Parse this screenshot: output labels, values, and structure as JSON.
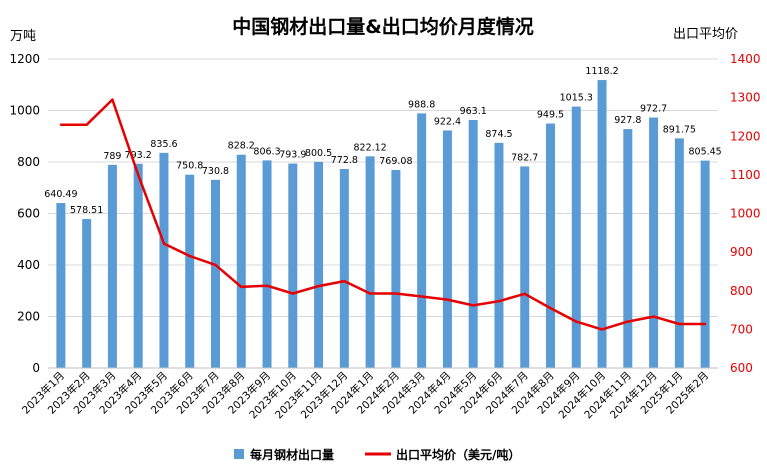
{
  "chart_data": {
    "type": "bar",
    "title": "中国钢材出口量&出口均价月度情况",
    "ylabel_left": "万吨",
    "ylabel_right": "出口平均价",
    "ylim_left": [
      0,
      1200
    ],
    "yticks_left": [
      0,
      200,
      400,
      600,
      800,
      1000,
      1200
    ],
    "ylim_right": [
      600,
      1400
    ],
    "yticks_right": [
      600,
      700,
      800,
      900,
      1000,
      1100,
      1200,
      1300,
      1400
    ],
    "grid": "horizontal",
    "legend_position": "bottom",
    "categories": [
      "2023年1月",
      "2023年2月",
      "2023年3月",
      "2023年4月",
      "2023年5月",
      "2023年6月",
      "2023年7月",
      "2023年8月",
      "2023年9月",
      "2023年10月",
      "2023年11月",
      "2023年12月",
      "2024年1月",
      "2024年2月",
      "2024年3月",
      "2024年4月",
      "2024年5月",
      "2024年6月",
      "2024年7月",
      "2024年8月",
      "2024年9月",
      "2024年10月",
      "2024年11月",
      "2024年12月",
      "2025年1月",
      "2025年2月"
    ],
    "series": [
      {
        "name": "每月钢材出口量",
        "type": "bar",
        "axis": "left",
        "color": "#5b9bd5",
        "values": [
          640.49,
          578.51,
          789,
          793.2,
          835.6,
          750.8,
          730.8,
          828.2,
          806.3,
          793.9,
          800.5,
          772.8,
          822.12,
          769.08,
          988.8,
          922.4,
          963.1,
          874.5,
          782.7,
          949.5,
          1015.3,
          1118.2,
          927.8,
          972.7,
          891.75,
          805.45
        ],
        "labels": [
          "640.49",
          "578.51",
          "789",
          "793.2",
          "835.6",
          "750.8",
          "730.8",
          "828.2",
          "806.3",
          "793.9",
          "800.5",
          "772.8",
          "822.12",
          "769.08",
          "988.8",
          "922.4",
          "963.1",
          "874.5",
          "782.7",
          "949.5",
          "1015.3",
          "1118.2",
          "927.8",
          "972.7",
          "891.75",
          "805.45"
        ]
      },
      {
        "name": "出口平均价（美元/吨）",
        "type": "line",
        "axis": "right",
        "color": "#e60000",
        "values": [
          1230,
          1230,
          1295,
          1100,
          922,
          890,
          867,
          810,
          813,
          793,
          812,
          825,
          793,
          793,
          785,
          777,
          762,
          773,
          792,
          755,
          720,
          700,
          720,
          733,
          714,
          714
        ]
      }
    ]
  }
}
